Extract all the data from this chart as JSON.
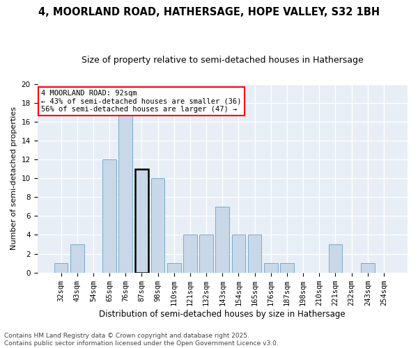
{
  "title": "4, MOORLAND ROAD, HATHERSAGE, HOPE VALLEY, S32 1BH",
  "subtitle": "Size of property relative to semi-detached houses in Hathersage",
  "xlabel": "Distribution of semi-detached houses by size in Hathersage",
  "ylabel": "Number of semi-detached properties",
  "categories": [
    "32sqm",
    "43sqm",
    "54sqm",
    "65sqm",
    "76sqm",
    "87sqm",
    "98sqm",
    "110sqm",
    "121sqm",
    "132sqm",
    "143sqm",
    "154sqm",
    "165sqm",
    "176sqm",
    "187sqm",
    "198sqm",
    "210sqm",
    "221sqm",
    "232sqm",
    "243sqm",
    "254sqm"
  ],
  "values": [
    1,
    3,
    0,
    12,
    17,
    11,
    10,
    1,
    4,
    4,
    7,
    4,
    4,
    1,
    1,
    0,
    0,
    3,
    0,
    1,
    0
  ],
  "bar_color": "#c8d8e8",
  "bar_edge_color": "#7aaac8",
  "highlight_index": 5,
  "annotation_title": "4 MOORLAND ROAD: 92sqm",
  "annotation_line1": "← 43% of semi-detached houses are smaller (36)",
  "annotation_line2": "56% of semi-detached houses are larger (47) →",
  "footer_line1": "Contains HM Land Registry data © Crown copyright and database right 2025.",
  "footer_line2": "Contains public sector information licensed under the Open Government Licence v3.0.",
  "ylim": [
    0,
    20
  ],
  "yticks": [
    0,
    2,
    4,
    6,
    8,
    10,
    12,
    14,
    16,
    18,
    20
  ],
  "bg_color": "#ffffff",
  "plot_bg_color": "#e8eef6",
  "grid_color": "#ffffff",
  "title_fontsize": 10.5,
  "subtitle_fontsize": 9,
  "footer_fontsize": 6.5,
  "ylabel_fontsize": 8,
  "xlabel_fontsize": 8.5,
  "tick_fontsize": 7.5,
  "ann_fontsize": 7.5
}
